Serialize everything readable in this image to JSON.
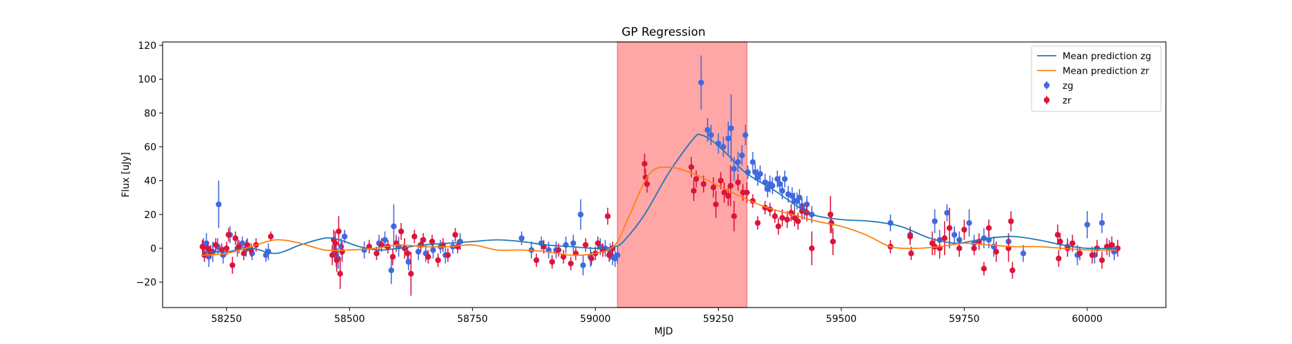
{
  "chart_data": {
    "type": "scatter",
    "title": "GP Regression",
    "xlabel": "MJD",
    "ylabel": "Flux [uJy]",
    "xlim": [
      58120,
      60160
    ],
    "ylim": [
      -35,
      122
    ],
    "xticks": [
      58250,
      58500,
      58750,
      59000,
      59250,
      59500,
      59750,
      60000
    ],
    "yticks": [
      -20,
      0,
      20,
      40,
      60,
      80,
      100,
      120
    ],
    "grid": false,
    "legend_position": "upper right",
    "shaded_region": {
      "x_start": 59045,
      "x_end": 59308,
      "color": "#ffa6a6"
    },
    "colors": {
      "zg": "#4169e1",
      "zr": "#dc143c",
      "mean_zg": "#1f77b4",
      "mean_zr": "#ff7f0e"
    },
    "legend": [
      {
        "label": "Mean prediction zg",
        "kind": "line",
        "color": "#1f77b4"
      },
      {
        "label": "Mean prediction zr",
        "kind": "line",
        "color": "#ff7f0e"
      },
      {
        "label": "zg",
        "kind": "errorbar",
        "color": "#4169e1"
      },
      {
        "label": "zr",
        "kind": "errorbar",
        "color": "#dc143c"
      }
    ],
    "series": [
      {
        "name": "Mean prediction zg",
        "kind": "line",
        "color": "#1f77b4",
        "x": [
          58200,
          58250,
          58300,
          58350,
          58400,
          58450,
          58480,
          58520,
          58560,
          58600,
          58650,
          58700,
          58750,
          58800,
          58850,
          58900,
          58950,
          59000,
          59040,
          59060,
          59100,
          59150,
          59200,
          59215,
          59240,
          59270,
          59300,
          59330,
          59360,
          59400,
          59440,
          59500,
          59560,
          59620,
          59680,
          59730,
          59760,
          59800,
          59850,
          59900,
          59950,
          60000,
          60060
        ],
        "y": [
          -2,
          -2,
          0,
          -3,
          2,
          6,
          5,
          1,
          -1,
          0,
          2,
          3,
          4,
          5,
          4,
          2,
          1,
          0,
          1,
          5,
          20,
          45,
          65,
          67,
          63,
          55,
          46,
          40,
          35,
          27,
          20,
          17,
          16,
          13,
          6,
          3,
          4,
          6,
          7,
          5,
          2,
          0,
          0
        ]
      },
      {
        "name": "Mean prediction zr",
        "kind": "line",
        "color": "#ff7f0e",
        "x": [
          58200,
          58250,
          58300,
          58350,
          58400,
          58450,
          58500,
          58550,
          58600,
          58650,
          58700,
          58750,
          58800,
          58850,
          58900,
          58950,
          59000,
          59040,
          59070,
          59110,
          59150,
          59200,
          59250,
          59300,
          59350,
          59400,
          59450,
          59500,
          59550,
          59600,
          59650,
          59700,
          59750,
          59800,
          59850,
          59900,
          59950,
          60000,
          60060
        ],
        "y": [
          -4,
          -3,
          1,
          5,
          3,
          -1,
          -1,
          0,
          2,
          1,
          1,
          2,
          -1,
          -1,
          -2,
          -4,
          -3,
          2,
          20,
          44,
          48,
          44,
          37,
          30,
          24,
          20,
          16,
          13,
          8,
          1,
          0,
          1,
          3,
          2,
          1,
          1,
          0,
          -1,
          -1
        ]
      },
      {
        "name": "zg",
        "kind": "errorbar",
        "color": "#4169e1",
        "x": [
          58203,
          58209,
          58214,
          58222,
          58232,
          58234,
          58243,
          58257,
          58272,
          58282,
          58290,
          58302,
          58330,
          58335,
          58470,
          58473,
          58477,
          58483,
          58490,
          58530,
          58560,
          58572,
          58585,
          58590,
          58600,
          58620,
          58640,
          58655,
          58670,
          58685,
          58695,
          58710,
          58725,
          58850,
          58870,
          58890,
          58905,
          58920,
          58940,
          58955,
          58970,
          58975,
          58990,
          59010,
          59020,
          59030,
          59035,
          59040,
          59045,
          59215,
          59228,
          59235,
          59250,
          59260,
          59270,
          59276,
          59282,
          59290,
          59298,
          59305,
          59310,
          59320,
          59325,
          59330,
          59335,
          59345,
          59350,
          59355,
          59360,
          59370,
          59375,
          59380,
          59385,
          59392,
          59400,
          59405,
          59410,
          59415,
          59420,
          59425,
          59430,
          59440,
          59600,
          59640,
          59690,
          59700,
          59715,
          59730,
          59740,
          59760,
          59770,
          59790,
          59800,
          59810,
          59840,
          59870,
          59960,
          59980,
          60000,
          60015,
          60030,
          60045,
          60055
        ],
        "y": [
          1,
          3,
          -5,
          -2,
          1,
          26,
          -4,
          8,
          0,
          3,
          0,
          -3,
          -4,
          -2,
          -2,
          -4,
          -6,
          1,
          7,
          -1,
          3,
          5,
          -13,
          13,
          1,
          -8,
          -2,
          -3,
          -1,
          1,
          -4,
          1,
          4,
          6,
          -1,
          3,
          -1,
          -1,
          2,
          3,
          20,
          -10,
          -5,
          1,
          0,
          -2,
          -5,
          -6,
          -4,
          98,
          70,
          67,
          62,
          60,
          65,
          71,
          47,
          51,
          55,
          67,
          45,
          51,
          45,
          42,
          44,
          39,
          35,
          38,
          37,
          41,
          38,
          34,
          41,
          32,
          31,
          28,
          28,
          30,
          25,
          22,
          26,
          20,
          15,
          8,
          16,
          5,
          21,
          8,
          5,
          15,
          3,
          6,
          5,
          1,
          4,
          -3,
          1,
          -4,
          14,
          -4,
          15,
          0,
          -2
        ],
        "err": [
          5,
          6,
          6,
          6,
          5,
          14,
          5,
          5,
          5,
          4,
          5,
          4,
          4,
          5,
          6,
          7,
          6,
          5,
          4,
          5,
          5,
          5,
          8,
          13,
          6,
          5,
          5,
          5,
          5,
          4,
          5,
          4,
          5,
          4,
          5,
          4,
          5,
          5,
          5,
          5,
          9,
          6,
          6,
          5,
          5,
          5,
          5,
          5,
          5,
          16,
          7,
          6,
          6,
          6,
          10,
          20,
          7,
          6,
          6,
          6,
          4,
          6,
          5,
          5,
          5,
          5,
          5,
          5,
          5,
          5,
          5,
          5,
          5,
          5,
          5,
          5,
          5,
          5,
          5,
          5,
          5,
          5,
          5,
          5,
          7,
          6,
          5,
          5,
          5,
          8,
          5,
          6,
          5,
          6,
          5,
          5,
          5,
          6,
          8,
          5,
          6,
          5,
          5
        ]
      },
      {
        "name": "zr",
        "kind": "errorbar",
        "color": "#dc143c",
        "x": [
          58201,
          58205,
          58212,
          58218,
          58228,
          58240,
          58250,
          58254,
          58262,
          58268,
          58275,
          58285,
          58292,
          58300,
          58310,
          58340,
          58465,
          58468,
          58471,
          58474,
          58478,
          58481,
          58485,
          58540,
          58555,
          58565,
          58578,
          58588,
          58595,
          58605,
          58612,
          58618,
          58625,
          58632,
          58645,
          58650,
          58660,
          58668,
          58680,
          58690,
          58700,
          58715,
          58720,
          58880,
          58895,
          58912,
          58925,
          58935,
          58950,
          58960,
          58980,
          58992,
          59000,
          59005,
          59015,
          59025,
          59028,
          59035,
          59100,
          59102,
          59105,
          59195,
          59200,
          59205,
          59220,
          59240,
          59245,
          59255,
          59262,
          59270,
          59275,
          59282,
          59290,
          59300,
          59308,
          59320,
          59330,
          59345,
          59355,
          59365,
          59372,
          59380,
          59390,
          59398,
          59405,
          59412,
          59420,
          59430,
          59440,
          59478,
          59480,
          59483,
          59600,
          59640,
          59642,
          59685,
          59690,
          59700,
          59710,
          59720,
          59740,
          59750,
          59770,
          59780,
          59790,
          59800,
          59815,
          59840,
          59845,
          59848,
          59940,
          59942,
          59945,
          59960,
          59970,
          59985,
          60010,
          60020,
          60030,
          60040,
          60050,
          60062
        ],
        "y": [
          1,
          -4,
          0,
          -2,
          2,
          -1,
          0,
          8,
          -10,
          6,
          1,
          -3,
          2,
          -1,
          2,
          7,
          -4,
          5,
          3,
          -7,
          10,
          -15,
          -2,
          1,
          -3,
          2,
          1,
          -5,
          3,
          10,
          0,
          -3,
          -15,
          7,
          2,
          5,
          -5,
          4,
          -7,
          2,
          -4,
          8,
          1,
          -7,
          1,
          -8,
          -1,
          -5,
          -9,
          -3,
          2,
          -6,
          -3,
          3,
          -1,
          19,
          -4,
          0,
          50,
          42,
          38,
          48,
          34,
          41,
          38,
          36,
          26,
          40,
          33,
          31,
          37,
          19,
          39,
          33,
          33,
          28,
          15,
          24,
          23,
          19,
          13,
          18,
          17,
          21,
          18,
          16,
          22,
          21,
          0,
          20,
          15,
          4,
          1,
          7,
          -3,
          3,
          1,
          0,
          6,
          12,
          0,
          11,
          0,
          4,
          -12,
          12,
          -2,
          0,
          16,
          -13,
          8,
          -6,
          4,
          0,
          3,
          -3,
          -4,
          0,
          -7,
          1,
          2,
          0
        ],
        "err": [
          4,
          4,
          4,
          4,
          4,
          4,
          4,
          4,
          5,
          4,
          4,
          4,
          4,
          4,
          4,
          3,
          6,
          6,
          7,
          7,
          9,
          9,
          6,
          4,
          4,
          4,
          4,
          5,
          5,
          5,
          6,
          4,
          13,
          4,
          4,
          4,
          4,
          4,
          4,
          4,
          4,
          4,
          4,
          4,
          4,
          4,
          4,
          4,
          4,
          4,
          4,
          4,
          4,
          4,
          4,
          5,
          4,
          4,
          6,
          5,
          5,
          6,
          6,
          5,
          5,
          6,
          8,
          5,
          6,
          6,
          12,
          9,
          5,
          5,
          6,
          4,
          4,
          4,
          4,
          4,
          5,
          5,
          5,
          5,
          5,
          5,
          5,
          5,
          10,
          11,
          6,
          8,
          4,
          5,
          4,
          7,
          5,
          6,
          10,
          12,
          5,
          6,
          4,
          5,
          4,
          5,
          6,
          8,
          6,
          5,
          6,
          5,
          5,
          5,
          5,
          4,
          5,
          5,
          5,
          5,
          5,
          5
        ]
      }
    ]
  }
}
